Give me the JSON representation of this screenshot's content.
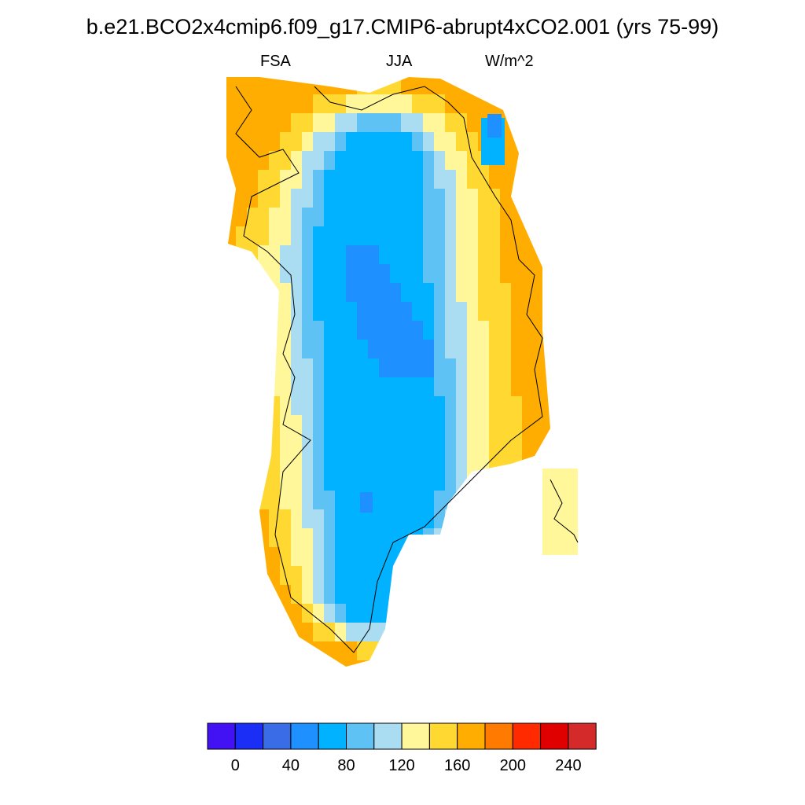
{
  "title": "b.e21.BCO2x4cmip6.f09_g17.CMIP6-abrupt4xCO2.001 (yrs 75-99)",
  "left_label": "FSA",
  "center_label": "JJA",
  "right_label": "W/m^2",
  "colorbar": {
    "colors": [
      "#4212f4",
      "#1a2ef5",
      "#3b6ce8",
      "#1e90ff",
      "#00b2ff",
      "#5ec2f5",
      "#aadcf2",
      "#fff799",
      "#ffd932",
      "#ffad00",
      "#ff7a00",
      "#ff2a00",
      "#e00000",
      "#d42a2a"
    ],
    "tick_labels": [
      "0",
      "40",
      "80",
      "120",
      "160",
      "200",
      "240"
    ],
    "bounds": [
      -20,
      0,
      20,
      40,
      60,
      80,
      100,
      120,
      140,
      160,
      180,
      200,
      220,
      240,
      260
    ]
  },
  "map_colors": {
    "coast": "#000000",
    "ocean": "#ffffff"
  }
}
